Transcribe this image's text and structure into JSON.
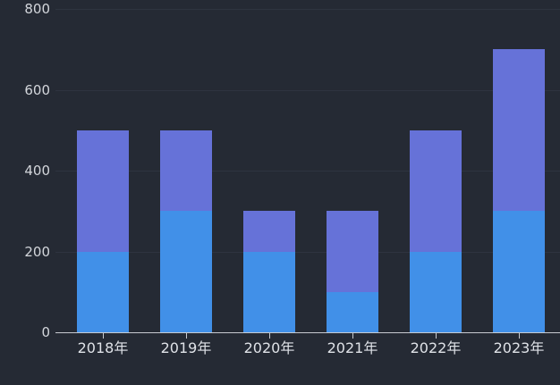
{
  "chart_data": {
    "type": "bar",
    "stacked": true,
    "title": "",
    "subtitle": "",
    "xlabel": "",
    "ylabel": "",
    "categories": [
      "2018年",
      "2019年",
      "2020年",
      "2021年",
      "2022年",
      "2023年"
    ],
    "series": [
      {
        "name": "bottom-segment",
        "color": "#4190e8",
        "values": [
          200,
          300,
          200,
          100,
          200,
          300
        ]
      },
      {
        "name": "top-segment",
        "color": "#6672d8",
        "values": [
          300,
          200,
          100,
          200,
          300,
          400
        ]
      }
    ],
    "stack_totals": [
      500,
      500,
      300,
      300,
      500,
      700
    ],
    "ylim": [
      0,
      800
    ],
    "yticks": [
      0,
      200,
      400,
      600,
      800
    ],
    "grid": true,
    "legend": "none",
    "colors": {
      "background": "#252a34",
      "gridline": "#2e3440",
      "axis_line": "#c8cbd1",
      "y_label_text": "#d3d6db",
      "x_label_text": "#dfe2e7"
    }
  }
}
